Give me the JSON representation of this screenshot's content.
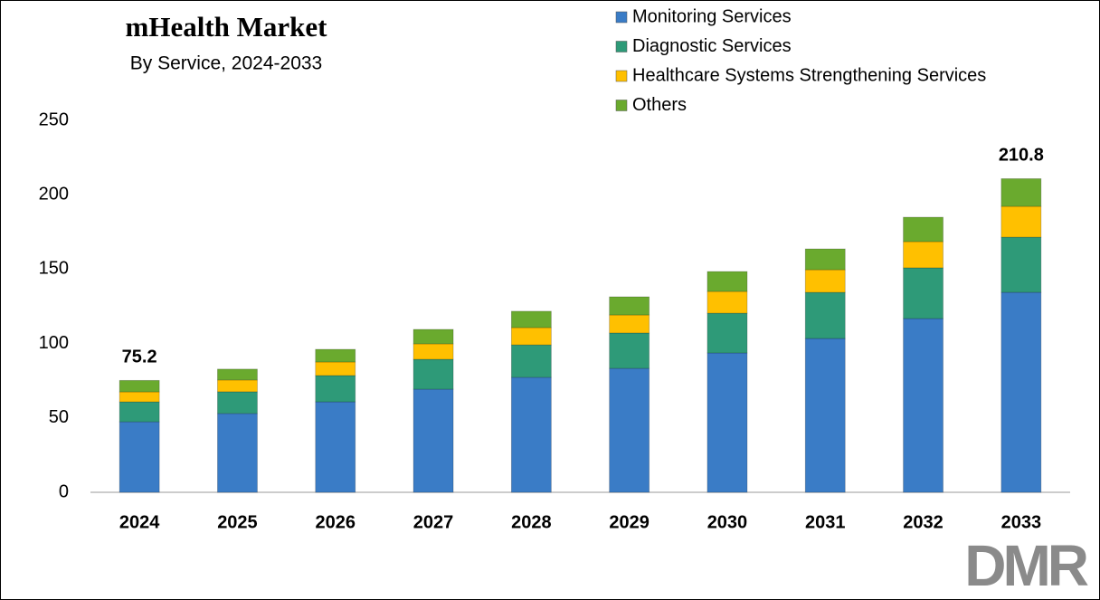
{
  "chart_data": {
    "type": "stacked-bar",
    "title": "mHealth Market",
    "subtitle": "By Service, 2024-2033",
    "categories": [
      "2024",
      "2025",
      "2026",
      "2027",
      "2028",
      "2029",
      "2030",
      "2031",
      "2032",
      "2033"
    ],
    "series": [
      {
        "name": "Monitoring Services",
        "color": "#3a7cc6",
        "values": [
          47.4,
          53.0,
          60.8,
          69.3,
          77.3,
          83.3,
          93.7,
          103.4,
          116.8,
          134.4
        ]
      },
      {
        "name": "Diagnostic Services",
        "color": "#2e9a78",
        "values": [
          13.4,
          14.6,
          17.7,
          20.1,
          21.8,
          23.8,
          26.7,
          31.0,
          34.1,
          37.1
        ]
      },
      {
        "name": "Healthcare Systems Strengthening Services",
        "color": "#ffc000",
        "values": [
          6.7,
          7.9,
          9.1,
          10.4,
          11.6,
          12.1,
          14.6,
          15.2,
          17.6,
          20.7
        ]
      },
      {
        "name": "Others",
        "color": "#6aaa2e",
        "values": [
          7.7,
          7.3,
          8.5,
          9.7,
          11.0,
          12.2,
          13.4,
          14.0,
          16.4,
          18.6
        ]
      }
    ],
    "total_labels": [
      75.2,
      null,
      null,
      null,
      null,
      null,
      null,
      null,
      null,
      210.8
    ],
    "ylim": [
      0,
      250
    ],
    "yticks": [
      0,
      50,
      100,
      150,
      200,
      250
    ],
    "grid": false,
    "legend": "top-right",
    "logo": "DMR"
  }
}
